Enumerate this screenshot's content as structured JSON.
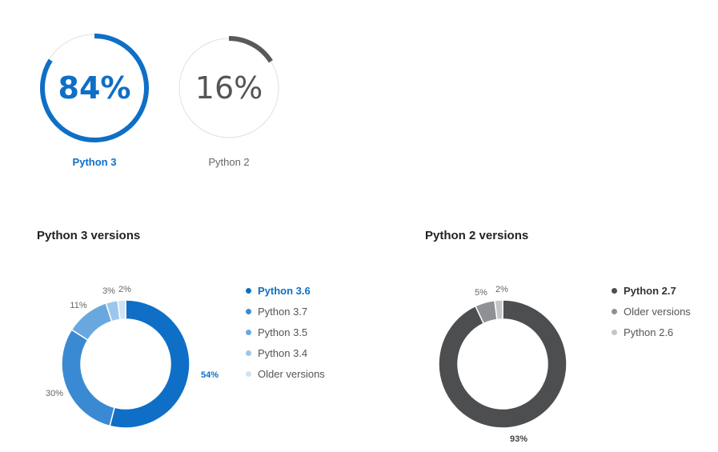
{
  "summary": [
    {
      "label": "Python 3",
      "value_text": "84%",
      "value": 84,
      "color": "#0f6fc6",
      "track_color": "#e0e0e0",
      "emphasized": true
    },
    {
      "label": "Python 2",
      "value_text": "16%",
      "value": 16,
      "color": "#58595b",
      "track_color": "#e0e0e0",
      "emphasized": false
    }
  ],
  "chart_data": [
    {
      "type": "pie",
      "title": "Python 3 versions",
      "categories": [
        "Python 3.6",
        "Python 3.7",
        "Python 3.5",
        "Python 3.4",
        "Older versions"
      ],
      "values": [
        54,
        30,
        11,
        3,
        2
      ],
      "value_labels": [
        "54%",
        "30%",
        "11%",
        "3%",
        "2%"
      ],
      "colors": [
        "#0f6fc6",
        "#3a8ad3",
        "#69a8df",
        "#9cc6ec",
        "#cfe3f6"
      ],
      "legend_position": "right",
      "highlighted": "Python 3.6"
    },
    {
      "type": "pie",
      "title": "Python 2 versions",
      "categories": [
        "Python 2.7",
        "Older versions",
        "Python 2.6"
      ],
      "values": [
        93,
        5,
        2
      ],
      "value_labels": [
        "93%",
        "5%",
        "2%"
      ],
      "colors": [
        "#4d4e50",
        "#8f9093",
        "#c5c6c8"
      ],
      "legend_position": "right",
      "highlighted": "Python 2.7"
    }
  ]
}
